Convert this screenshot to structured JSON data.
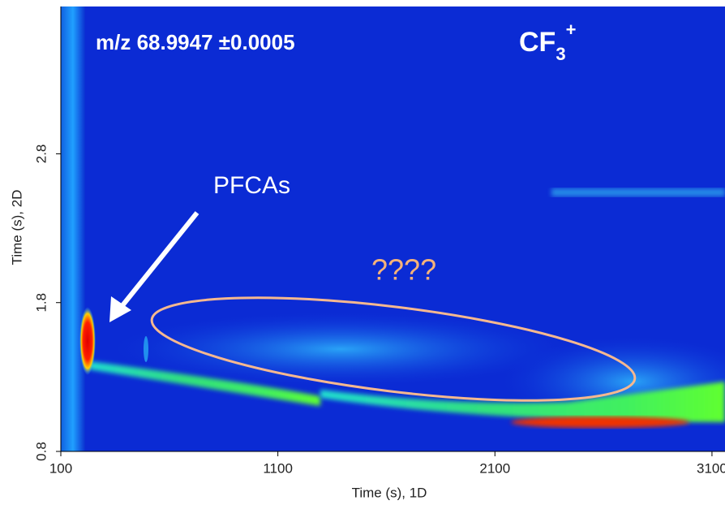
{
  "chart_data": {
    "type": "contour",
    "title": "m/z 68.9947 ±0.0005",
    "ion": {
      "base": "CF",
      "subscript": "3",
      "superscript": "+"
    },
    "xlabel": "Time (s), 1D",
    "ylabel": "Time (s), 2D",
    "xlim": [
      100,
      3160
    ],
    "xticks": [
      100,
      1100,
      2100,
      3100
    ],
    "ylim": [
      0.8,
      3.79
    ],
    "yticks": [
      0.8,
      1.8,
      2.8
    ],
    "annotations": [
      {
        "text": "PFCAs"
      },
      {
        "text": "????"
      }
    ]
  }
}
